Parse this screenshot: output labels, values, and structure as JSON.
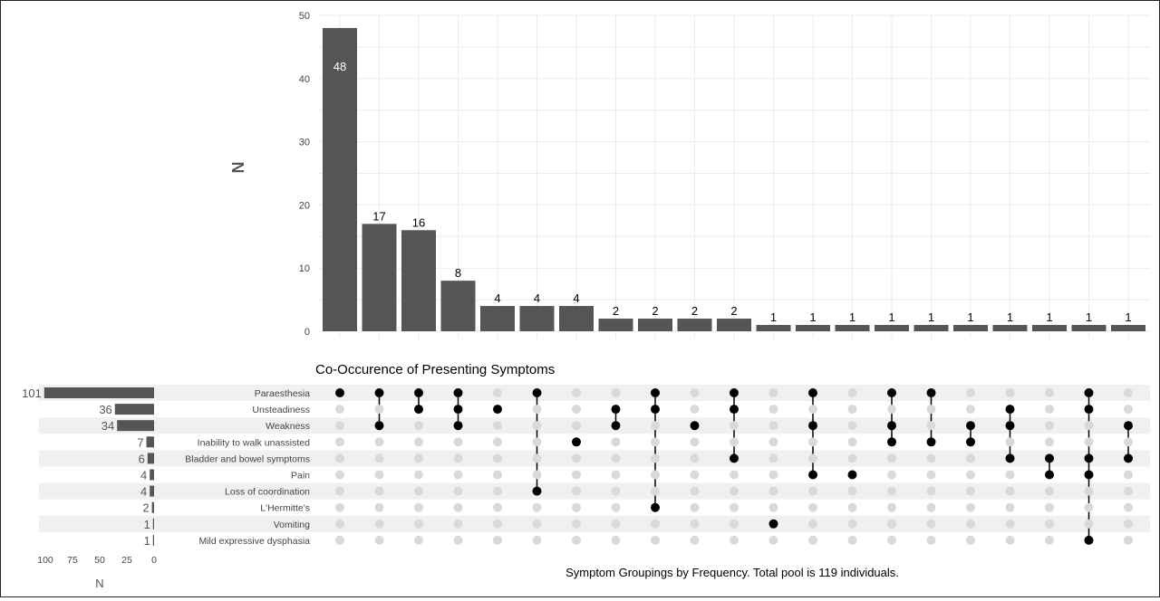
{
  "chart_data": [
    {
      "type": "bar",
      "ylabel": "N",
      "ylim": [
        0,
        50
      ],
      "yticks": [
        0,
        10,
        20,
        30,
        40,
        50
      ],
      "values": [
        48,
        17,
        16,
        8,
        4,
        4,
        4,
        2,
        2,
        2,
        2,
        1,
        1,
        1,
        1,
        1,
        1,
        1,
        1,
        1,
        1
      ],
      "grid": true
    },
    {
      "type": "bar",
      "orientation": "horizontal",
      "direction": "reversed",
      "xlabel": "N",
      "xlim": [
        0,
        100
      ],
      "xticks": [
        100,
        75,
        50,
        25,
        0
      ],
      "values": [
        101,
        36,
        34,
        7,
        6,
        4,
        4,
        2,
        1,
        1
      ]
    },
    {
      "type": "matrix",
      "title": "Co-Occurence of Presenting Symptoms",
      "caption": "Symptom Groupings by Frequency. Total pool is 119 individuals.",
      "sets": [
        "Paraesthesia",
        "Unsteadiness",
        "Weakness",
        "Inability to walk unassisted",
        "Bladder and bowel symptoms",
        "Pain",
        "Loss of coordination",
        "L'Hermitte's",
        "Vomiting",
        "Mild expressive dysphasia"
      ],
      "combinations": [
        [
          0
        ],
        [
          0,
          2
        ],
        [
          0,
          1
        ],
        [
          0,
          1,
          2
        ],
        [
          1
        ],
        [
          0,
          6
        ],
        [
          3
        ],
        [
          1,
          2
        ],
        [
          0,
          1,
          7
        ],
        [
          2
        ],
        [
          0,
          1,
          4
        ],
        [
          8
        ],
        [
          0,
          2,
          5
        ],
        [
          5
        ],
        [
          0,
          2,
          3
        ],
        [
          0,
          3
        ],
        [
          2,
          3
        ],
        [
          1,
          2,
          4
        ],
        [
          4,
          5
        ],
        [
          0,
          1,
          4,
          5,
          9
        ],
        [
          2,
          4
        ]
      ],
      "colors": {
        "bar": "#555555",
        "dot_active": "#000000",
        "dot_inactive": "#d9d9d9",
        "stripe": "#f0f0f0"
      }
    }
  ]
}
